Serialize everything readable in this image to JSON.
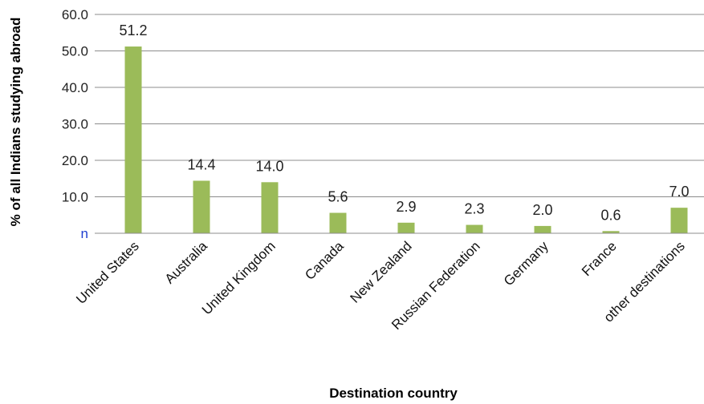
{
  "chart_data": {
    "type": "bar",
    "categories": [
      "United States",
      "Australia",
      "United Kingdom",
      "Canada",
      "New Zealand",
      "Russian Federation",
      "Germany",
      "France",
      "other destinations"
    ],
    "values": [
      51.2,
      14.4,
      14.0,
      5.6,
      2.9,
      2.3,
      2.0,
      0.6,
      7.0
    ],
    "data_labels": [
      "51.2",
      "14.4",
      "14.0",
      "5.6",
      "2.9",
      "2.3",
      "2.0",
      "0.6",
      "7.0"
    ],
    "y_ticks": [
      "n",
      "10.0",
      "20.0",
      "30.0",
      "40.0",
      "50.0",
      "60.0"
    ],
    "y_tick_values": [
      0,
      10,
      20,
      30,
      40,
      50,
      60
    ],
    "xlabel": "Destination country",
    "ylabel": "% of all Indians studying abroad",
    "ylim": [
      0,
      60
    ],
    "grid": true,
    "legend": "none",
    "bar_color": "#9bbb59",
    "grid_color": "#8c8c8c"
  }
}
